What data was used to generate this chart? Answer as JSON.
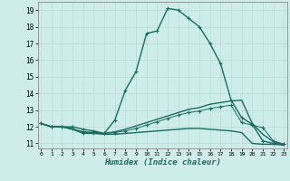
{
  "xlabel": "Humidex (Indice chaleur)",
  "bg_color": "#ceecea",
  "grid_color": "#b8dbd9",
  "line_color": "#1a6b62",
  "x_ticks": [
    0,
    1,
    2,
    3,
    4,
    5,
    6,
    7,
    8,
    9,
    10,
    11,
    12,
    13,
    14,
    15,
    16,
    17,
    18,
    19,
    20,
    21,
    22,
    23
  ],
  "y_ticks": [
    11,
    12,
    13,
    14,
    15,
    16,
    17,
    18,
    19
  ],
  "ylim": [
    10.7,
    19.5
  ],
  "xlim": [
    -0.3,
    23.3
  ],
  "series": [
    {
      "x": [
        0,
        1,
        2,
        3,
        4,
        5,
        6,
        7,
        8,
        9,
        10,
        11,
        12,
        13,
        14,
        15,
        16,
        17,
        18,
        19,
        20,
        21,
        22,
        23
      ],
      "y": [
        12.2,
        12.0,
        12.0,
        12.0,
        11.85,
        11.75,
        11.6,
        12.4,
        14.2,
        15.3,
        17.6,
        17.75,
        19.1,
        19.0,
        18.5,
        18.0,
        17.0,
        15.8,
        13.6,
        12.55,
        12.15,
        11.15,
        11.0,
        10.95
      ],
      "style": "solid",
      "marker": true,
      "lw": 1.0
    },
    {
      "x": [
        0,
        1,
        2,
        3,
        4,
        5,
        6,
        7,
        8,
        9,
        10,
        11,
        12,
        13,
        14,
        15,
        16,
        17,
        18,
        19,
        20,
        21,
        22,
        23
      ],
      "y": [
        12.2,
        12.0,
        12.0,
        11.85,
        11.7,
        11.65,
        11.6,
        11.7,
        11.85,
        12.05,
        12.25,
        12.45,
        12.65,
        12.85,
        13.05,
        13.15,
        13.35,
        13.45,
        13.55,
        13.6,
        12.2,
        11.55,
        11.1,
        10.95
      ],
      "style": "solid",
      "marker": false,
      "lw": 1.0
    },
    {
      "x": [
        0,
        1,
        2,
        3,
        4,
        5,
        6,
        7,
        8,
        9,
        10,
        11,
        12,
        13,
        14,
        15,
        16,
        17,
        18,
        19,
        20,
        21,
        22,
        23
      ],
      "y": [
        12.2,
        12.0,
        12.0,
        11.9,
        11.65,
        11.65,
        11.6,
        11.65,
        11.75,
        11.9,
        12.1,
        12.3,
        12.5,
        12.7,
        12.85,
        12.95,
        13.1,
        13.2,
        13.3,
        12.25,
        12.1,
        11.95,
        11.15,
        10.95
      ],
      "style": "solid",
      "marker": true,
      "lw": 0.7
    },
    {
      "x": [
        0,
        1,
        2,
        3,
        4,
        5,
        6,
        7,
        8,
        9,
        10,
        11,
        12,
        13,
        14,
        15,
        16,
        17,
        18,
        19,
        20,
        21,
        22,
        23
      ],
      "y": [
        12.2,
        12.0,
        12.0,
        11.85,
        11.6,
        11.6,
        11.55,
        11.55,
        11.6,
        11.65,
        11.7,
        11.75,
        11.8,
        11.85,
        11.9,
        11.9,
        11.85,
        11.8,
        11.75,
        11.65,
        11.0,
        10.95,
        10.95,
        10.9
      ],
      "style": "solid",
      "marker": false,
      "lw": 1.0
    }
  ]
}
